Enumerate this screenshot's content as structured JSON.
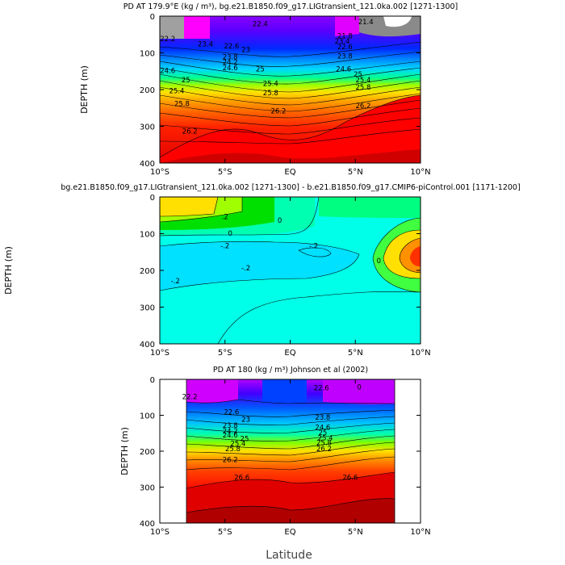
{
  "figure": {
    "xlabel": "Latitude"
  },
  "chart_data": [
    {
      "type": "heatmap",
      "title": "PD AT 179.9°E (kg / m³), bg.e21.B1850.f09_g17.LIGtransient_121.0ka.002 [1271-1300]",
      "ylabel": "DEPTH (m)",
      "x_ticks": [
        "10°S",
        "5°S",
        "EQ",
        "5°N",
        "10°N"
      ],
      "y_ticks": [
        "0",
        "100",
        "200",
        "300",
        "400"
      ],
      "xlim": [
        -10,
        10
      ],
      "ylim": [
        400,
        0
      ],
      "contour_labels": [
        {
          "text": "22.6",
          "x": -4.5,
          "y": 88
        },
        {
          "text": "23",
          "x": -3.4,
          "y": 98
        },
        {
          "text": "23.8",
          "x": -4.6,
          "y": 118
        },
        {
          "text": "24.2",
          "x": -4.6,
          "y": 132
        },
        {
          "text": "24.6",
          "x": -4.6,
          "y": 147
        },
        {
          "text": "25",
          "x": -2.3,
          "y": 150
        },
        {
          "text": "25.4",
          "x": -1.5,
          "y": 190
        },
        {
          "text": "25.8",
          "x": -1.5,
          "y": 215
        },
        {
          "text": "26.2",
          "x": -0.9,
          "y": 265
        },
        {
          "text": "25",
          "x": -8.0,
          "y": 180
        },
        {
          "text": "25.4",
          "x": -8.7,
          "y": 210
        },
        {
          "text": "25.8",
          "x": -8.3,
          "y": 245
        },
        {
          "text": "26.2",
          "x": -7.7,
          "y": 320
        },
        {
          "text": "23.4",
          "x": -6.5,
          "y": 82
        },
        {
          "text": "24.6",
          "x": -9.4,
          "y": 155
        },
        {
          "text": "22.6",
          "x": 4.2,
          "y": 90
        },
        {
          "text": "23.8",
          "x": 4.2,
          "y": 115
        },
        {
          "text": "24.6",
          "x": 4.1,
          "y": 150
        },
        {
          "text": "25.4",
          "x": 5.6,
          "y": 180
        },
        {
          "text": "25.8",
          "x": 5.6,
          "y": 200
        },
        {
          "text": "26.2",
          "x": 5.6,
          "y": 250
        },
        {
          "text": "22.2",
          "x": -9.4,
          "y": 68
        },
        {
          "text": "23.4",
          "x": 4.0,
          "y": 75
        },
        {
          "text": "21.4",
          "x": 5.8,
          "y": 22
        },
        {
          "text": "22.4",
          "x": -2.3,
          "y": 28
        },
        {
          "text": "21.8",
          "x": 4.2,
          "y": 60
        },
        {
          "text": "25",
          "x": 5.2,
          "y": 165
        }
      ]
    },
    {
      "type": "heatmap",
      "title": "bg.e21.B1850.f09_g17.LIGtransient_121.0ka.002 [1271-1300] - b.e21.B1850.f09_g17.CMIP6-piControl.001 [1171-1200]",
      "ylabel": "DEPTH (m)",
      "x_ticks": [
        "10°S",
        "5°S",
        "EQ",
        "5°N",
        "10°N"
      ],
      "y_ticks": [
        "0",
        "100",
        "200",
        "300",
        "400"
      ],
      "xlim": [
        -10,
        10
      ],
      "ylim": [
        400,
        0
      ],
      "contour_labels": [
        {
          "text": ".2",
          "x": -5.0,
          "y": 60
        },
        {
          "text": "0",
          "x": -0.8,
          "y": 70
        },
        {
          "text": "0",
          "x": -4.6,
          "y": 105
        },
        {
          "text": "-.2",
          "x": -5.0,
          "y": 140
        },
        {
          "text": "-.2",
          "x": -3.4,
          "y": 200
        },
        {
          "text": "-.2",
          "x": -8.8,
          "y": 235
        },
        {
          "text": "-.2",
          "x": 1.8,
          "y": 140
        },
        {
          "text": "0",
          "x": 6.8,
          "y": 180
        }
      ]
    },
    {
      "type": "heatmap",
      "title": "PD AT 180 (kg / m³) Johnson et al (2002)",
      "ylabel": "DEPTH (m)",
      "x_ticks": [
        "10°S",
        "5°S",
        "EQ",
        "5°N",
        "10°N"
      ],
      "y_ticks": [
        "0",
        "100",
        "200",
        "300",
        "400"
      ],
      "xlim": [
        -10,
        10
      ],
      "ylim": [
        400,
        0
      ],
      "contour_labels": [
        {
          "text": "22.6",
          "x": -4.5,
          "y": 98
        },
        {
          "text": "23",
          "x": -3.4,
          "y": 118
        },
        {
          "text": "23.8",
          "x": -4.6,
          "y": 135
        },
        {
          "text": "24.2",
          "x": -4.6,
          "y": 150
        },
        {
          "text": "24.6",
          "x": -4.6,
          "y": 162
        },
        {
          "text": "25",
          "x": -3.5,
          "y": 172
        },
        {
          "text": "25.4",
          "x": -4.0,
          "y": 185
        },
        {
          "text": "25.8",
          "x": -4.4,
          "y": 200
        },
        {
          "text": "26.2",
          "x": -4.6,
          "y": 230
        },
        {
          "text": "26.6",
          "x": -3.7,
          "y": 280
        },
        {
          "text": "26.6",
          "x": 4.6,
          "y": 280
        },
        {
          "text": "23.8",
          "x": 2.5,
          "y": 112
        },
        {
          "text": "24.6",
          "x": 2.5,
          "y": 140
        },
        {
          "text": "25",
          "x": 2.5,
          "y": 155
        },
        {
          "text": "25.4",
          "x": 2.7,
          "y": 170
        },
        {
          "text": "25.8",
          "x": 2.6,
          "y": 183
        },
        {
          "text": "26.2",
          "x": 2.6,
          "y": 200
        },
        {
          "text": "22.2",
          "x": -7.7,
          "y": 55
        },
        {
          "text": "22.6",
          "x": 2.4,
          "y": 30
        },
        {
          "text": "0",
          "x": 5.3,
          "y": 28
        }
      ]
    }
  ]
}
